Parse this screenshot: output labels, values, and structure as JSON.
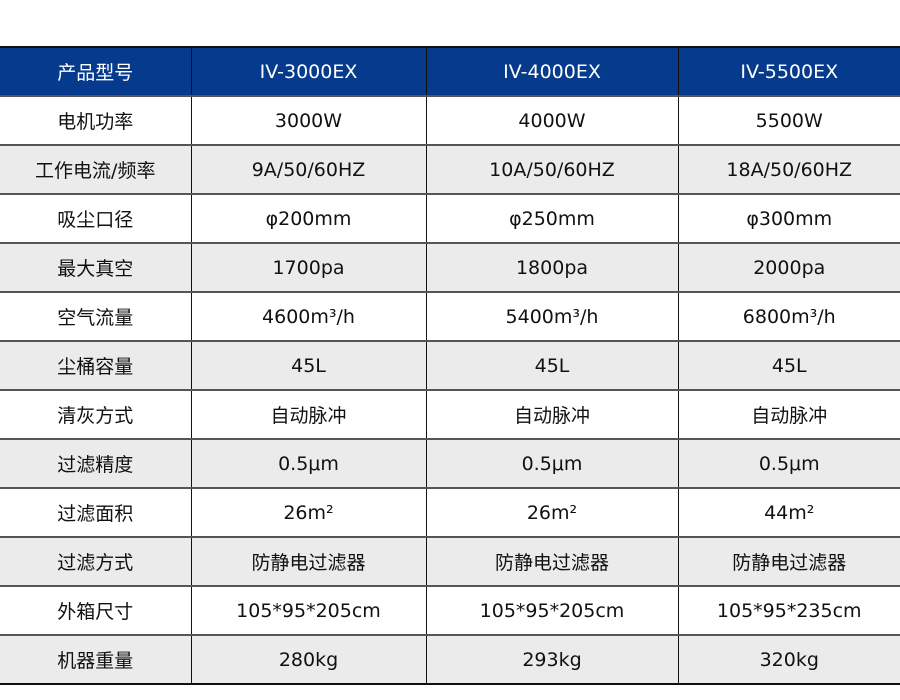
{
  "header": [
    "产品型号",
    "IV-3000EX",
    "IV-4000EX",
    "IV-5500EX"
  ],
  "rows": [
    [
      "电机功率",
      "3000W",
      "4000W",
      "5500W"
    ],
    [
      "工作电流/频率",
      "9A/50/60HZ",
      "10A/50/60HZ",
      "18A/50/60HZ"
    ],
    [
      "吸尘口径",
      "φ200mm",
      "φ250mm",
      "φ300mm"
    ],
    [
      "最大真空",
      "1700pa",
      "1800pa",
      "2000pa"
    ],
    [
      "空气流量",
      "4600m³/h",
      "5400m³/h",
      "6800m³/h"
    ],
    [
      "尘桶容量",
      "45L",
      "45L",
      "45L"
    ],
    [
      "清灰方式",
      "自动脉冲",
      "自动脉冲",
      "自动脉冲"
    ],
    [
      "过滤精度",
      "0.5μm",
      "0.5μm",
      "0.5μm"
    ],
    [
      "过滤面积",
      "26m²",
      "26m²",
      "44m²"
    ],
    [
      "过滤方式",
      "防静电过滤器",
      "防静电过滤器",
      "防静电过滤器"
    ],
    [
      "外箱尺寸",
      "105*95*205cm",
      "105*95*205cm",
      "105*95*235cm"
    ],
    [
      "机器重量",
      "280kg",
      "293kg",
      "320kg"
    ]
  ],
  "colors": {
    "header_bg": "#053a8c",
    "alt_row_bg": "#ebebeb"
  }
}
